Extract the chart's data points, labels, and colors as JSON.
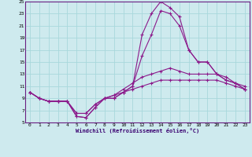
{
  "xlabel": "Windchill (Refroidissement éolien,°C)",
  "xlim": [
    -0.5,
    23.5
  ],
  "ylim": [
    5,
    25
  ],
  "yticks": [
    5,
    7,
    9,
    11,
    13,
    15,
    17,
    19,
    21,
    23,
    25
  ],
  "xticks": [
    0,
    1,
    2,
    3,
    4,
    5,
    6,
    7,
    8,
    9,
    10,
    11,
    12,
    13,
    14,
    15,
    16,
    17,
    18,
    19,
    20,
    21,
    22,
    23
  ],
  "bg_color": "#ceeaee",
  "grid_color": "#a8d8dc",
  "line_color": "#8b1a8b",
  "series": [
    {
      "x": [
        0,
        1,
        2,
        3,
        4,
        5,
        6,
        7,
        8,
        9,
        10,
        11,
        12,
        13,
        14,
        15,
        16,
        17,
        18,
        19,
        20,
        21,
        22,
        23
      ],
      "y": [
        10.0,
        9.0,
        8.5,
        8.5,
        8.5,
        6.0,
        5.8,
        7.5,
        9.0,
        9.0,
        10.0,
        11.0,
        19.5,
        23.0,
        25.0,
        24.0,
        22.5,
        17.0,
        15.0,
        15.0,
        13.0,
        12.0,
        11.5,
        10.5
      ]
    },
    {
      "x": [
        0,
        1,
        2,
        3,
        4,
        5,
        6,
        7,
        8,
        9,
        10,
        11,
        12,
        13,
        14,
        15,
        16,
        17,
        18,
        19,
        20,
        21,
        22,
        23
      ],
      "y": [
        10.0,
        9.0,
        8.5,
        8.5,
        8.5,
        6.0,
        5.8,
        7.5,
        9.0,
        9.0,
        10.0,
        11.0,
        16.0,
        19.5,
        23.5,
        23.0,
        21.0,
        17.0,
        15.0,
        15.0,
        13.0,
        12.5,
        11.5,
        10.5
      ]
    },
    {
      "x": [
        0,
        1,
        2,
        3,
        4,
        5,
        6,
        7,
        8,
        9,
        10,
        11,
        12,
        13,
        14,
        15,
        16,
        17,
        18,
        19,
        20,
        21,
        22,
        23
      ],
      "y": [
        10.0,
        9.0,
        8.5,
        8.5,
        8.5,
        6.5,
        6.5,
        8.0,
        9.0,
        9.5,
        10.5,
        11.5,
        12.5,
        13.0,
        13.5,
        14.0,
        13.5,
        13.0,
        13.0,
        13.0,
        13.0,
        12.0,
        11.5,
        11.0
      ]
    },
    {
      "x": [
        0,
        1,
        2,
        3,
        4,
        5,
        6,
        7,
        8,
        9,
        10,
        11,
        12,
        13,
        14,
        15,
        16,
        17,
        18,
        19,
        20,
        21,
        22,
        23
      ],
      "y": [
        10.0,
        9.0,
        8.5,
        8.5,
        8.5,
        6.5,
        6.5,
        8.0,
        9.0,
        9.5,
        10.0,
        10.5,
        11.0,
        11.5,
        12.0,
        12.0,
        12.0,
        12.0,
        12.0,
        12.0,
        12.0,
        11.5,
        11.0,
        10.5
      ]
    }
  ]
}
